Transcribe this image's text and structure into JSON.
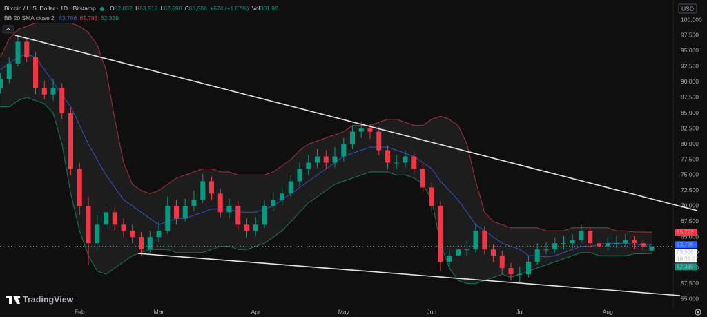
{
  "chart_data": {
    "type": "candlestick",
    "title": "Bitcoin / U.S. Dollar · 1D · Bitstamp",
    "header": {
      "open_prefix": "O",
      "open": "62,832",
      "high_prefix": "H",
      "high": "63,519",
      "low_prefix": "L",
      "low": "62,690",
      "close_prefix": "C",
      "close": "63,506",
      "change": "+674 (+1.07%)",
      "volume_prefix": "Vol",
      "volume": "301.92"
    },
    "indicator": {
      "name": "BB 20 SMA close 2",
      "values": [
        "63,766",
        "65,793",
        "62,339"
      ]
    },
    "currency": "USD",
    "brand": "TradingView",
    "up_color": "#089981",
    "down_color": "#f23645",
    "categories": [
      null,
      null,
      null,
      null,
      null,
      null,
      null,
      null,
      null,
      "Feb",
      null,
      null,
      null,
      null,
      null,
      null,
      null,
      null,
      "Mar",
      null,
      null,
      null,
      null,
      null,
      null,
      null,
      null,
      null,
      null,
      "Apr",
      null,
      null,
      null,
      null,
      null,
      null,
      null,
      null,
      null,
      "May",
      null,
      null,
      null,
      null,
      null,
      null,
      null,
      null,
      null,
      "Jun",
      null,
      null,
      null,
      null,
      null,
      null,
      null,
      null,
      null,
      "Jul",
      null,
      null,
      null,
      null,
      null,
      null,
      null,
      null,
      null,
      "Aug",
      null,
      null,
      null,
      null,
      null
    ],
    "open": [
      89000,
      90500,
      93000,
      96500,
      94000,
      89000,
      88000,
      89000,
      85000,
      76000,
      70000,
      64000,
      67000,
      69000,
      67000,
      66000,
      65000,
      63000,
      65000,
      66000,
      70000,
      68000,
      70000,
      71000,
      74000,
      72000,
      69000,
      70000,
      67000,
      66000,
      67000,
      70000,
      71000,
      72000,
      74000,
      76000,
      77000,
      78000,
      77000,
      78000,
      80000,
      82000,
      82500,
      82000,
      79000,
      77000,
      77000,
      78000,
      76000,
      73000,
      70000,
      61000,
      62000,
      63000,
      63000,
      66000,
      63000,
      62000,
      60000,
      59000,
      59000,
      61000,
      63000,
      63000,
      64000,
      64000,
      64500,
      66000,
      64000,
      63500,
      64000,
      64000,
      64500,
      64000,
      62832
    ],
    "high": [
      91500,
      94000,
      97500,
      97200,
      94800,
      90200,
      90500,
      89800,
      85800,
      77000,
      71500,
      68500,
      70000,
      69800,
      68000,
      67000,
      65800,
      66000,
      67500,
      71500,
      71000,
      71200,
      72500,
      75200,
      74800,
      72800,
      71200,
      70800,
      68000,
      68200,
      71000,
      72200,
      73200,
      75000,
      77000,
      78200,
      79200,
      79000,
      79500,
      81000,
      83000,
      83500,
      83200,
      82800,
      79800,
      78200,
      79000,
      78800,
      76800,
      73800,
      70800,
      63000,
      64200,
      64500,
      67200,
      66800,
      63800,
      62800,
      60800,
      60200,
      62000,
      64000,
      64200,
      65000,
      65200,
      65500,
      67000,
      66500,
      64800,
      65000,
      65200,
      65500,
      65200,
      64500,
      63519
    ],
    "low": [
      88200,
      89800,
      92500,
      93200,
      88000,
      87200,
      87000,
      84000,
      75000,
      68500,
      60500,
      63000,
      66200,
      66000,
      65000,
      64000,
      62000,
      62500,
      64200,
      65500,
      67000,
      67500,
      69200,
      70500,
      71000,
      68200,
      68000,
      66200,
      65000,
      65200,
      66500,
      69200,
      70200,
      71500,
      73200,
      75000,
      76200,
      76000,
      76200,
      77200,
      79200,
      81000,
      80800,
      78200,
      76000,
      76000,
      76200,
      75200,
      72200,
      69000,
      59500,
      60200,
      61200,
      62000,
      62500,
      62200,
      61000,
      59000,
      58000,
      57800,
      58500,
      60500,
      62200,
      62500,
      63000,
      63200,
      64000,
      63200,
      62500,
      62800,
      63200,
      63500,
      63000,
      62800,
      62690
    ],
    "close": [
      90500,
      93000,
      96500,
      94000,
      89000,
      88000,
      89000,
      85000,
      76000,
      70000,
      64000,
      67000,
      69000,
      67000,
      66000,
      65000,
      63000,
      65000,
      66000,
      70000,
      68000,
      70000,
      71000,
      74000,
      72000,
      69000,
      70000,
      67000,
      66000,
      67000,
      70000,
      71000,
      72000,
      74000,
      76000,
      77000,
      78000,
      77000,
      78000,
      80000,
      82000,
      82500,
      82000,
      79000,
      77000,
      77000,
      78000,
      76000,
      73000,
      70000,
      61000,
      62000,
      63000,
      63000,
      66000,
      63000,
      62000,
      60000,
      59000,
      59000,
      61000,
      63000,
      63000,
      64000,
      64000,
      64500,
      66000,
      64000,
      63500,
      64000,
      64000,
      64500,
      64000,
      63500,
      63506
    ],
    "bands": [
      {
        "color": "#3553c8",
        "values": [
          92000,
          93000,
          94000,
          94500,
          94000,
          92000,
          90000,
          88000,
          86000,
          83000,
          80000,
          77500,
          75000,
          73000,
          71000,
          70000,
          69000,
          68000,
          67000,
          67500,
          68000,
          68000,
          68500,
          69000,
          69500,
          69500,
          69500,
          69000,
          69000,
          69000,
          69500,
          70000,
          71000,
          72000,
          73000,
          74000,
          75000,
          76000,
          77000,
          78000,
          78500,
          79000,
          79500,
          79500,
          79500,
          79000,
          78500,
          78000,
          77000,
          76000,
          74000,
          72500,
          71000,
          69000,
          67000,
          66000,
          65000,
          64000,
          63500,
          63000,
          62000,
          62000,
          61800,
          62000,
          62500,
          63000,
          63500,
          63500,
          63800,
          64000,
          64000,
          64000,
          63800,
          63800,
          63766
        ]
      },
      {
        "color": "#a8323e",
        "values": [
          94000,
          97000,
          98500,
          99000,
          99500,
          99500,
          99500,
          99500,
          99500,
          99000,
          98000,
          96000,
          92000,
          84000,
          77000,
          73500,
          72500,
          72000,
          72500,
          73500,
          74500,
          75000,
          75500,
          76000,
          76000,
          75500,
          75500,
          75000,
          75000,
          75000,
          75000,
          75500,
          76500,
          77500,
          79000,
          80000,
          80500,
          81000,
          81500,
          82000,
          83000,
          83000,
          83000,
          83500,
          84000,
          84000,
          83500,
          83000,
          83000,
          84000,
          84500,
          84000,
          83000,
          80000,
          74000,
          69000,
          67500,
          67000,
          66500,
          66500,
          66500,
          66500,
          66000,
          66000,
          66000,
          66500,
          66500,
          66500,
          66500,
          66500,
          66000,
          66000,
          65800,
          65800,
          65793
        ]
      },
      {
        "color": "#167a60",
        "values": [
          86000,
          86000,
          87000,
          87500,
          87000,
          86500,
          85000,
          80000,
          72000,
          66000,
          62000,
          59500,
          59000,
          60000,
          61000,
          62000,
          62500,
          63000,
          63000,
          63000,
          62500,
          62500,
          62500,
          62500,
          63000,
          63500,
          63500,
          63000,
          63000,
          63500,
          64000,
          65000,
          66000,
          67500,
          69000,
          70500,
          71500,
          72500,
          73500,
          74000,
          74500,
          75000,
          75500,
          75500,
          75500,
          75000,
          75000,
          74500,
          73500,
          71000,
          64000,
          60000,
          58000,
          57500,
          57500,
          58000,
          58500,
          59000,
          58500,
          59000,
          59500,
          60000,
          60500,
          61000,
          61500,
          62000,
          62500,
          62500,
          62000,
          62000,
          62000,
          62000,
          62300,
          62300,
          62339
        ]
      }
    ],
    "ylim": [
      55000,
      100000
    ],
    "yticks": [
      {
        "value": 55000,
        "label": "55,000"
      },
      {
        "value": 57500,
        "label": "57,500"
      },
      {
        "value": 60000,
        "label": "60,000"
      },
      {
        "value": 62500,
        "label": "62,500"
      },
      {
        "value": 65000,
        "label": "65,000"
      },
      {
        "value": 67500,
        "label": "67,500"
      },
      {
        "value": 70000,
        "label": "70,000"
      },
      {
        "value": 72500,
        "label": "72,500"
      },
      {
        "value": 75000,
        "label": "75,000"
      },
      {
        "value": 77500,
        "label": "77,500"
      },
      {
        "value": 80000,
        "label": "80,000"
      },
      {
        "value": 82500,
        "label": "82,500"
      },
      {
        "value": 85000,
        "label": "85,000"
      },
      {
        "value": 87500,
        "label": "87,500"
      },
      {
        "value": 90000,
        "label": "90,000"
      },
      {
        "value": 92500,
        "label": "92,500"
      },
      {
        "value": 95000,
        "label": "95,000"
      },
      {
        "value": 97500,
        "label": "97,500"
      },
      {
        "value": 100000,
        "label": "100,000"
      }
    ],
    "price_tags": [
      {
        "value": 65793,
        "label": "65,793",
        "color": "#f23645"
      },
      {
        "value": 63766,
        "label": "63,766",
        "color": "#2962ff"
      },
      {
        "value": 63506,
        "label": "63,506",
        "time": "18:39:07",
        "color": "#ffffff"
      },
      {
        "value": 62339,
        "label": "62,339",
        "color": "#089981"
      }
    ]
  }
}
